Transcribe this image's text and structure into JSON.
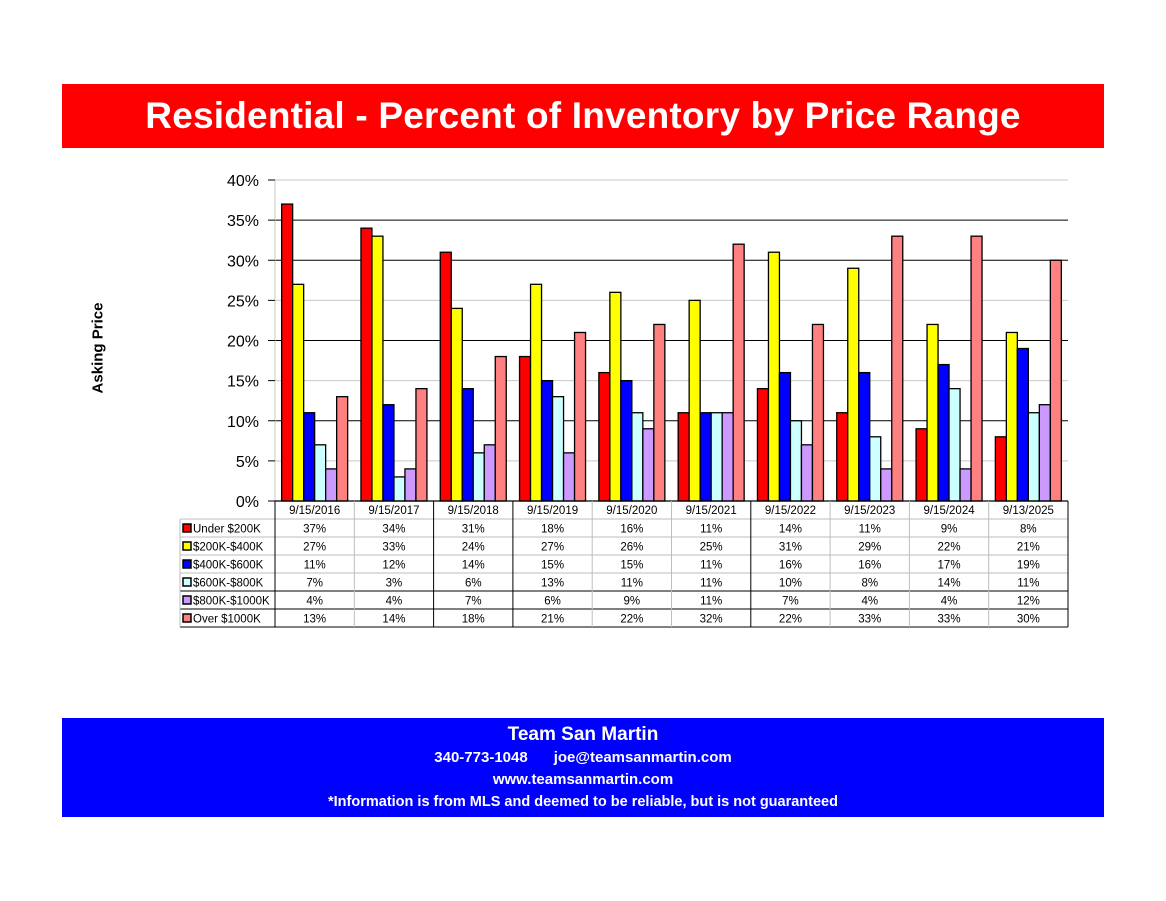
{
  "header": {
    "title": "Residential - Percent of Inventory by Price Range"
  },
  "chart_data": {
    "type": "bar",
    "title": "Residential - Percent of Inventory by Price Range",
    "xlabel": "",
    "ylabel": "Asking Price",
    "ylim": [
      0,
      40
    ],
    "y_ticks": [
      "0%",
      "5%",
      "10%",
      "15%",
      "20%",
      "25%",
      "30%",
      "35%",
      "40%"
    ],
    "y_tick_values": [
      0,
      5,
      10,
      15,
      20,
      25,
      30,
      35,
      40
    ],
    "grid": true,
    "legend_placement": "data-table-left",
    "value_format": "percent",
    "categories": [
      "9/15/2016",
      "9/15/2017",
      "9/15/2018",
      "9/15/2019",
      "9/15/2020",
      "9/15/2021",
      "9/15/2022",
      "9/15/2023",
      "9/15/2024",
      "9/13/2025"
    ],
    "series": [
      {
        "name": "Under $200K",
        "color": "#ff0000",
        "values": [
          37,
          34,
          31,
          18,
          16,
          11,
          14,
          11,
          9,
          8
        ]
      },
      {
        "name": "$200K-$400K",
        "color": "#ffff00",
        "values": [
          27,
          33,
          24,
          27,
          26,
          25,
          31,
          29,
          22,
          21
        ]
      },
      {
        "name": "$400K-$600K",
        "color": "#0000ff",
        "values": [
          11,
          12,
          14,
          15,
          15,
          11,
          16,
          16,
          17,
          19
        ]
      },
      {
        "name": "$600K-$800K",
        "color": "#ccffff",
        "values": [
          7,
          3,
          6,
          13,
          11,
          11,
          10,
          8,
          14,
          11
        ]
      },
      {
        "name": "$800K-$1000K",
        "color": "#cc99ff",
        "values": [
          4,
          4,
          7,
          6,
          9,
          11,
          7,
          4,
          4,
          12
        ]
      },
      {
        "name": "Over $1000K",
        "color": "#ff8080",
        "values": [
          13,
          14,
          18,
          21,
          22,
          32,
          22,
          33,
          33,
          30
        ]
      }
    ],
    "data_table": true
  },
  "footer": {
    "team": "Team San Martin",
    "phone": "340-773-1048",
    "email": "joe@teamsanmartin.com",
    "website": "www.teamsanmartin.com",
    "disclaimer": "*Information is from MLS and deemed to be reliable, but is not guaranteed"
  },
  "colors": {
    "title_banner": "#ff0000",
    "footer_banner": "#0000ff"
  }
}
